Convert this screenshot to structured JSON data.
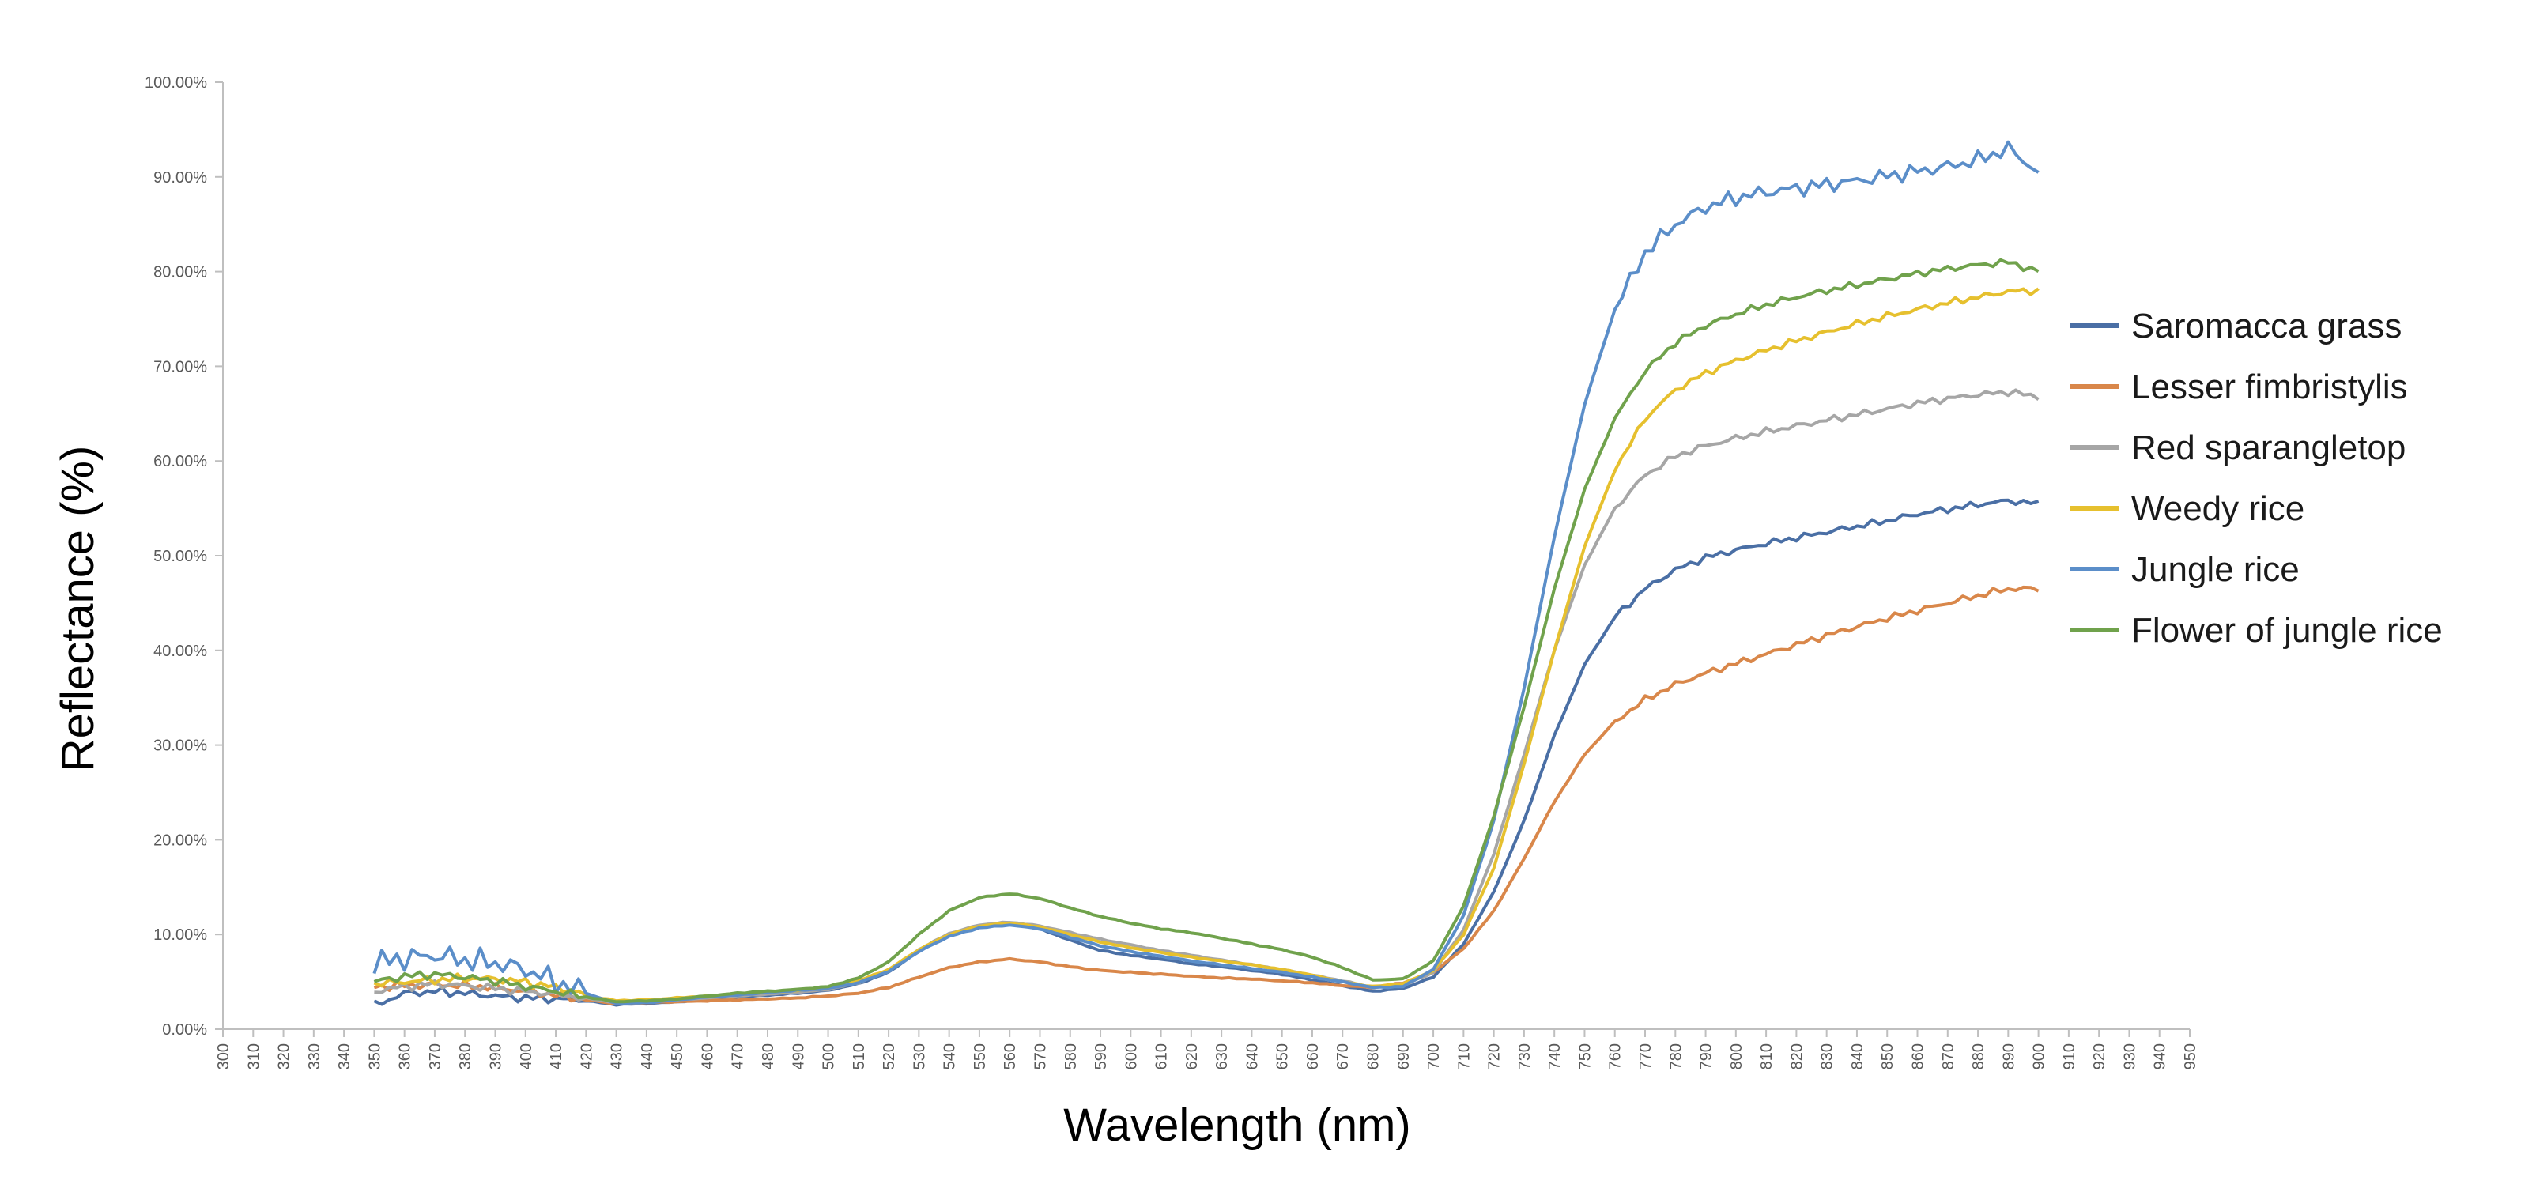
{
  "chart_data": {
    "type": "line",
    "title": "",
    "xlabel": "Wavelength (nm)",
    "ylabel": "Reflectance (%)",
    "xlim": [
      300,
      950
    ],
    "ylim": [
      0,
      100
    ],
    "x_ticks": [
      300,
      310,
      320,
      330,
      340,
      350,
      360,
      370,
      380,
      390,
      400,
      410,
      420,
      430,
      440,
      450,
      460,
      470,
      480,
      490,
      500,
      510,
      520,
      530,
      540,
      550,
      560,
      570,
      580,
      590,
      600,
      610,
      620,
      630,
      640,
      650,
      660,
      670,
      680,
      690,
      700,
      710,
      720,
      730,
      740,
      750,
      760,
      770,
      780,
      790,
      800,
      810,
      820,
      830,
      840,
      850,
      860,
      870,
      880,
      890,
      900,
      910,
      920,
      930,
      940,
      950
    ],
    "y_ticks": [
      "0.00%",
      "10.00%",
      "20.00%",
      "30.00%",
      "40.00%",
      "50.00%",
      "60.00%",
      "70.00%",
      "80.00%",
      "90.00%",
      "100.00%"
    ],
    "y_tick_values": [
      0,
      10,
      20,
      30,
      40,
      50,
      60,
      70,
      80,
      90,
      100
    ],
    "grid": false,
    "legend_position": "right",
    "x": [
      350,
      360,
      370,
      380,
      390,
      400,
      410,
      420,
      430,
      440,
      450,
      460,
      470,
      480,
      490,
      500,
      510,
      520,
      530,
      540,
      550,
      560,
      570,
      580,
      590,
      600,
      610,
      620,
      630,
      640,
      650,
      660,
      670,
      680,
      690,
      700,
      710,
      720,
      730,
      740,
      750,
      760,
      770,
      780,
      790,
      800,
      810,
      820,
      830,
      840,
      850,
      860,
      870,
      880,
      890,
      900
    ],
    "series": [
      {
        "name": "Saromacca grass",
        "color": "#4a6fa5",
        "values": [
          2.5,
          3.8,
          4.0,
          3.8,
          3.5,
          3.3,
          3.2,
          3.0,
          2.6,
          2.7,
          2.9,
          3.1,
          3.4,
          3.6,
          3.8,
          4.1,
          4.8,
          6.0,
          8.3,
          9.9,
          10.8,
          11.2,
          10.6,
          9.4,
          8.3,
          7.8,
          7.4,
          6.9,
          6.6,
          6.2,
          5.8,
          5.2,
          4.6,
          4.0,
          4.3,
          5.5,
          9.0,
          14.5,
          22.0,
          31.0,
          38.5,
          43.5,
          46.5,
          48.5,
          49.8,
          50.6,
          51.3,
          51.9,
          52.5,
          53.1,
          53.7,
          54.4,
          54.9,
          55.4,
          55.8,
          55.5
        ]
      },
      {
        "name": "Lesser fimbristylis",
        "color": "#d9874a",
        "values": [
          4.5,
          4.6,
          4.7,
          4.6,
          4.4,
          4.0,
          3.6,
          3.1,
          2.7,
          2.8,
          2.9,
          3.0,
          3.1,
          3.2,
          3.3,
          3.5,
          3.8,
          4.4,
          5.5,
          6.5,
          7.1,
          7.4,
          7.1,
          6.6,
          6.2,
          6.0,
          5.8,
          5.6,
          5.4,
          5.3,
          5.1,
          4.9,
          4.6,
          4.4,
          4.9,
          6.0,
          8.5,
          12.5,
          18.0,
          24.0,
          29.0,
          32.5,
          34.8,
          36.4,
          37.6,
          38.6,
          39.6,
          40.6,
          41.6,
          42.5,
          43.4,
          44.2,
          45.0,
          45.8,
          46.5,
          46.5
        ]
      },
      {
        "name": "Red sparangletop",
        "color": "#a6a6a6",
        "values": [
          4.0,
          4.5,
          4.8,
          4.6,
          4.3,
          4.0,
          3.7,
          3.3,
          2.8,
          2.9,
          3.1,
          3.3,
          3.5,
          3.7,
          3.9,
          4.2,
          4.9,
          6.2,
          8.4,
          10.1,
          11.0,
          11.3,
          10.9,
          10.2,
          9.5,
          8.9,
          8.3,
          7.8,
          7.3,
          6.8,
          6.3,
          5.7,
          5.1,
          4.4,
          4.6,
          6.0,
          10.5,
          18.5,
          29.0,
          40.0,
          49.0,
          55.0,
          58.5,
          60.5,
          61.6,
          62.4,
          63.1,
          63.7,
          64.3,
          64.9,
          65.5,
          66.1,
          66.6,
          67.0,
          67.3,
          66.8
        ]
      },
      {
        "name": "Weedy rice",
        "color": "#e6c02e",
        "values": [
          4.8,
          5.0,
          5.2,
          5.4,
          5.3,
          5.0,
          4.4,
          3.6,
          3.0,
          3.1,
          3.3,
          3.5,
          3.7,
          3.9,
          4.1,
          4.4,
          5.1,
          6.3,
          8.4,
          10.0,
          10.9,
          11.2,
          10.8,
          10.0,
          9.2,
          8.6,
          8.1,
          7.6,
          7.2,
          6.8,
          6.3,
          5.7,
          5.0,
          4.5,
          4.8,
          6.2,
          10.0,
          17.0,
          28.0,
          40.0,
          51.0,
          59.0,
          64.5,
          67.5,
          69.3,
          70.6,
          71.7,
          72.7,
          73.6,
          74.5,
          75.3,
          76.0,
          76.7,
          77.3,
          77.9,
          78.0
        ]
      },
      {
        "name": "Jungle rice",
        "color": "#5b8ec9",
        "values": [
          7.0,
          7.5,
          7.8,
          7.3,
          7.0,
          6.3,
          5.0,
          3.8,
          2.7,
          2.8,
          3.1,
          3.4,
          3.6,
          3.9,
          4.1,
          4.3,
          4.9,
          6.1,
          8.2,
          9.8,
          10.7,
          11.0,
          10.6,
          9.7,
          8.8,
          8.2,
          7.7,
          7.2,
          6.8,
          6.4,
          6.0,
          5.5,
          5.0,
          4.4,
          4.5,
          6.3,
          12.0,
          22.0,
          36.0,
          52.0,
          66.0,
          76.0,
          82.0,
          85.0,
          86.8,
          87.8,
          88.4,
          88.8,
          89.2,
          89.6,
          90.1,
          90.6,
          91.1,
          91.8,
          93.0,
          90.5
        ]
      },
      {
        "name": "Flower of jungle rice",
        "color": "#70a24c",
        "values": [
          5.0,
          5.6,
          5.8,
          5.5,
          5.1,
          4.5,
          4.0,
          3.4,
          2.9,
          3.0,
          3.2,
          3.5,
          3.8,
          4.0,
          4.2,
          4.5,
          5.4,
          7.1,
          10.0,
          12.5,
          13.9,
          14.3,
          13.8,
          12.8,
          11.9,
          11.2,
          10.6,
          10.2,
          9.6,
          9.0,
          8.4,
          7.6,
          6.5,
          5.2,
          5.3,
          7.2,
          13.0,
          22.5,
          34.0,
          46.5,
          57.0,
          64.5,
          69.5,
          72.5,
          74.3,
          75.5,
          76.5,
          77.3,
          78.0,
          78.6,
          79.2,
          79.8,
          80.3,
          80.7,
          81.0,
          80.0
        ]
      }
    ]
  }
}
